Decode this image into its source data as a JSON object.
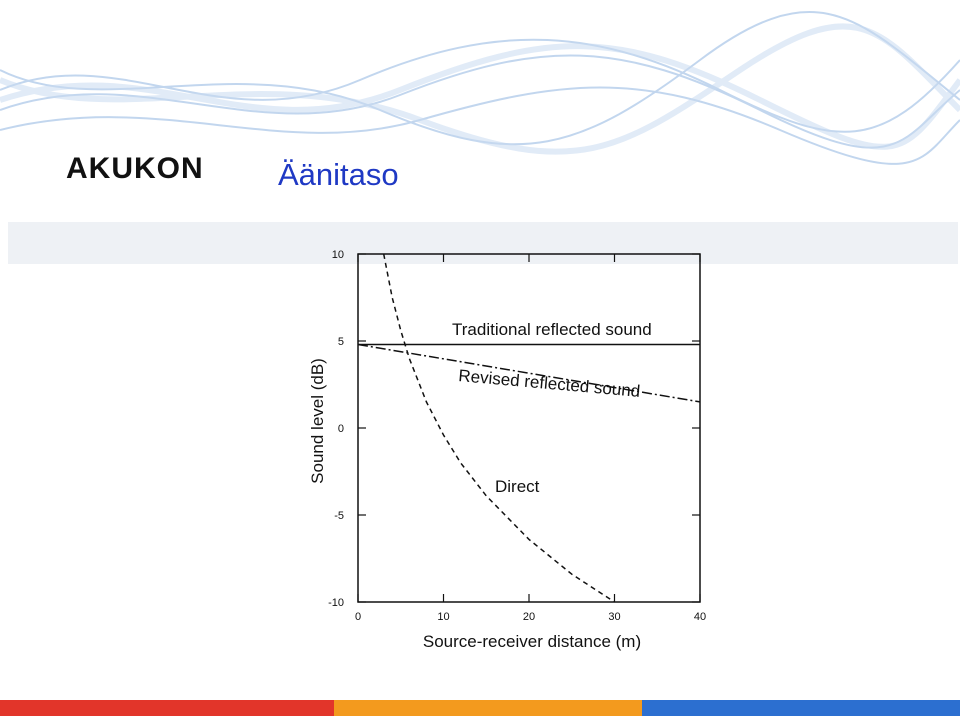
{
  "header": {
    "logo_text": "AKUKON",
    "title": "Äänitaso"
  },
  "colors": {
    "title": "#1f39c4",
    "wave": "#a9c6e8",
    "footer": [
      "#e2352a",
      "#f39a1e",
      "#2c6fd0"
    ]
  },
  "chart_data": {
    "type": "line",
    "xlabel": "Source-receiver distance (m)",
    "ylabel": "Sound level (dB)",
    "xlim": [
      0,
      40
    ],
    "ylim": [
      -10,
      10
    ],
    "xticks": [
      "0",
      "10",
      "20",
      "30",
      "40"
    ],
    "yticks": [
      "10",
      "5",
      "0",
      "-5",
      "-10"
    ],
    "grid": false,
    "series": [
      {
        "name": "Traditional reflected sound",
        "style": "solid",
        "x": [
          0,
          40
        ],
        "y": [
          4.8,
          4.8
        ]
      },
      {
        "name": "Revised reflected sound",
        "style": "dash-dot",
        "x": [
          0,
          40
        ],
        "y": [
          4.8,
          1.5
        ]
      },
      {
        "name": "Direct",
        "style": "dashed",
        "x": [
          3,
          4,
          5,
          6,
          8,
          10,
          12,
          15,
          20,
          25,
          30
        ],
        "y": [
          10,
          7.5,
          5.6,
          4,
          1.5,
          -0.4,
          -2.0,
          -3.9,
          -6.4,
          -8.4,
          -10
        ]
      }
    ]
  }
}
